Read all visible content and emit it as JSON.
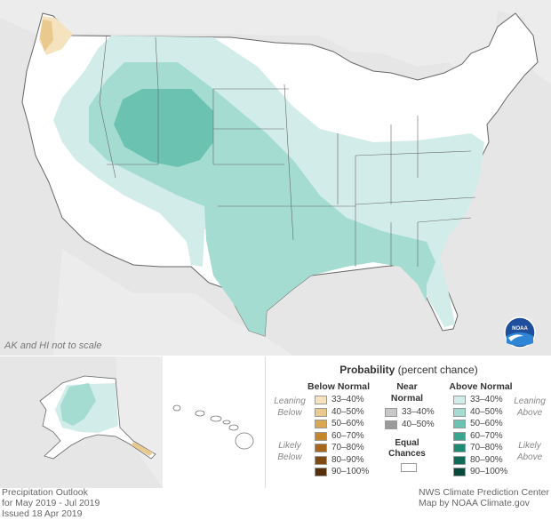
{
  "map": {
    "inset_note": "AK and HI not to scale",
    "logo_text": "NOAA",
    "colors": {
      "ocean": "#e6e6e6",
      "land": "#ffffff",
      "border": "#555555",
      "above_33_40": "#d2ede9",
      "above_40_50": "#a4dcd1",
      "above_50_60": "#6cc2b0",
      "below_33_40": "#f5e2be",
      "below_40_50": "#e9c98d"
    }
  },
  "legend": {
    "title_bold": "Probability",
    "title_rest": "(percent chance)",
    "below_head": "Below Normal",
    "near_head_1": "Near",
    "near_head_2": "Normal",
    "above_head": "Above Normal",
    "leaning_1": "Leaning",
    "below_word": "Below",
    "above_word": "Above",
    "likely_1": "Likely",
    "equal_1": "Equal",
    "equal_2": "Chances",
    "below": [
      {
        "label": "33–40%",
        "color": "#f5e2be"
      },
      {
        "label": "40–50%",
        "color": "#e9c98d"
      },
      {
        "label": "50–60%",
        "color": "#d9a754"
      },
      {
        "label": "60–70%",
        "color": "#c4852b"
      },
      {
        "label": "70–80%",
        "color": "#a5661c"
      },
      {
        "label": "80–90%",
        "color": "#7f4a12"
      },
      {
        "label": "90–100%",
        "color": "#55300a"
      }
    ],
    "near": [
      {
        "label": "33–40%",
        "color": "#c8c8c8"
      },
      {
        "label": "40–50%",
        "color": "#9a9a9a"
      }
    ],
    "above": [
      {
        "label": "33–40%",
        "color": "#d2ede9"
      },
      {
        "label": "40–50%",
        "color": "#a4dcd1"
      },
      {
        "label": "50–60%",
        "color": "#6cc2b0"
      },
      {
        "label": "60–70%",
        "color": "#3aa58f"
      },
      {
        "label": "70–80%",
        "color": "#1c8a73"
      },
      {
        "label": "80–90%",
        "color": "#0e6b57"
      },
      {
        "label": "90–100%",
        "color": "#06493a"
      }
    ]
  },
  "footer": {
    "left_1": "Precipitation Outlook",
    "left_2": "for May 2019 - Jul 2019",
    "left_3": "Issued 18 Apr 2019",
    "right_1": "NWS Climate Prediction Center",
    "right_2": "Map by NOAA Climate.gov"
  }
}
